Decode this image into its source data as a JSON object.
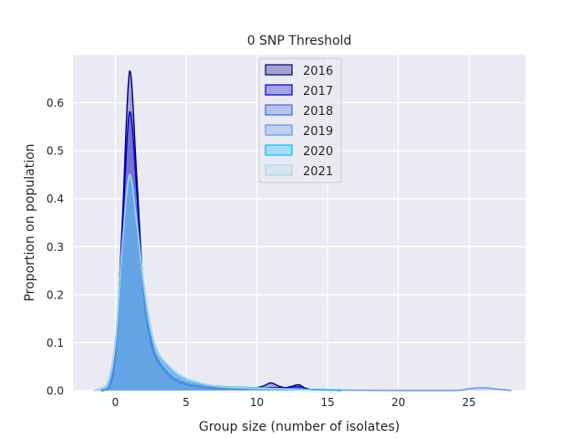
{
  "chart_data": {
    "type": "area",
    "title": "0 SNP Threshold",
    "xlabel": "Group size (number of isolates)",
    "ylabel": "Proportion on population",
    "xlim": [
      -3,
      29
    ],
    "ylim": [
      0,
      0.7
    ],
    "xticks": [
      0,
      5,
      10,
      15,
      20,
      25
    ],
    "yticks": [
      0.0,
      0.1,
      0.2,
      0.3,
      0.4,
      0.5,
      0.6
    ],
    "xtick_labels": [
      "0",
      "5",
      "10",
      "15",
      "20",
      "25"
    ],
    "ytick_labels": [
      "0.0",
      "0.1",
      "0.2",
      "0.3",
      "0.4",
      "0.5",
      "0.6"
    ],
    "grid": true,
    "legend_placement": "top-center",
    "series": [
      {
        "name": "2016",
        "color": "#000080",
        "peak_x": 1.0,
        "peak_y": 0.665,
        "x_min": -1.0,
        "x_max": 13.6,
        "x": [
          -1,
          -0.5,
          0,
          0.5,
          1,
          1.5,
          2,
          2.5,
          3,
          4,
          5,
          6,
          7,
          8,
          9,
          10,
          10.5,
          11,
          11.5,
          12,
          12.5,
          13,
          13.6
        ],
        "y": [
          0,
          0.004,
          0.07,
          0.36,
          0.665,
          0.45,
          0.2,
          0.1,
          0.06,
          0.025,
          0.012,
          0.007,
          0.005,
          0.004,
          0.003,
          0.006,
          0.01,
          0.016,
          0.01,
          0.006,
          0.009,
          0.012,
          0
        ]
      },
      {
        "name": "2017",
        "color": "#0000cd",
        "peak_x": 1.0,
        "peak_y": 0.58,
        "x_min": -1.0,
        "x_max": 14.0,
        "x": [
          -1,
          -0.5,
          0,
          0.5,
          1,
          1.5,
          2,
          2.5,
          3,
          4,
          5,
          6,
          7,
          8,
          9,
          10,
          11,
          12,
          13,
          14
        ],
        "y": [
          0,
          0.006,
          0.08,
          0.34,
          0.58,
          0.42,
          0.2,
          0.11,
          0.065,
          0.03,
          0.015,
          0.009,
          0.006,
          0.005,
          0.005,
          0.005,
          0.006,
          0.006,
          0.008,
          0
        ]
      },
      {
        "name": "2018",
        "color": "#4169e1",
        "peak_x": 1.1,
        "peak_y": 0.43,
        "x_min": -1.5,
        "x_max": 16.0,
        "x": [
          -1.5,
          -1,
          -0.5,
          0,
          0.5,
          1,
          1.5,
          2,
          2.5,
          3,
          4,
          5,
          6,
          7,
          8,
          10,
          12,
          14,
          16
        ],
        "y": [
          0,
          0.005,
          0.02,
          0.1,
          0.3,
          0.43,
          0.36,
          0.22,
          0.13,
          0.08,
          0.04,
          0.02,
          0.012,
          0.008,
          0.006,
          0.005,
          0.004,
          0.002,
          0
        ]
      },
      {
        "name": "2019",
        "color": "#6495ed",
        "peak_x": 1.1,
        "peak_y": 0.44,
        "x_min": -1.5,
        "x_max": 28.0,
        "x": [
          -1.5,
          -1,
          -0.5,
          0,
          0.5,
          1,
          1.5,
          2,
          2.5,
          3,
          4,
          5,
          6,
          7,
          8,
          10,
          12,
          14,
          16,
          20,
          24,
          25,
          26,
          27,
          28
        ],
        "y": [
          0,
          0.005,
          0.02,
          0.1,
          0.3,
          0.44,
          0.36,
          0.22,
          0.13,
          0.08,
          0.04,
          0.02,
          0.012,
          0.008,
          0.006,
          0.004,
          0.003,
          0.002,
          0.001,
          0,
          0,
          0.004,
          0.006,
          0.003,
          0
        ]
      },
      {
        "name": "2020",
        "color": "#00bfff",
        "peak_x": 1.1,
        "peak_y": 0.45,
        "x_min": -1.5,
        "x_max": 16.0,
        "x": [
          -1.5,
          -1,
          -0.5,
          0,
          0.5,
          1,
          1.5,
          2,
          2.5,
          3,
          4,
          5,
          6,
          7,
          8,
          9,
          10,
          12,
          14,
          16
        ],
        "y": [
          0,
          0.005,
          0.02,
          0.1,
          0.31,
          0.45,
          0.35,
          0.22,
          0.13,
          0.08,
          0.045,
          0.025,
          0.015,
          0.01,
          0.008,
          0.007,
          0.006,
          0.004,
          0.002,
          0
        ]
      },
      {
        "name": "2021",
        "color": "#add8e6",
        "peak_x": 1.1,
        "peak_y": 0.45,
        "x_min": -1.5,
        "x_max": 14.0,
        "x": [
          -1.5,
          -1,
          -0.5,
          0,
          0.5,
          1,
          1.5,
          2,
          2.5,
          3,
          4,
          5,
          6,
          7,
          8,
          10,
          12,
          14
        ],
        "y": [
          0,
          0.005,
          0.02,
          0.1,
          0.31,
          0.45,
          0.35,
          0.22,
          0.13,
          0.08,
          0.045,
          0.026,
          0.016,
          0.01,
          0.007,
          0.005,
          0.003,
          0
        ]
      }
    ]
  }
}
